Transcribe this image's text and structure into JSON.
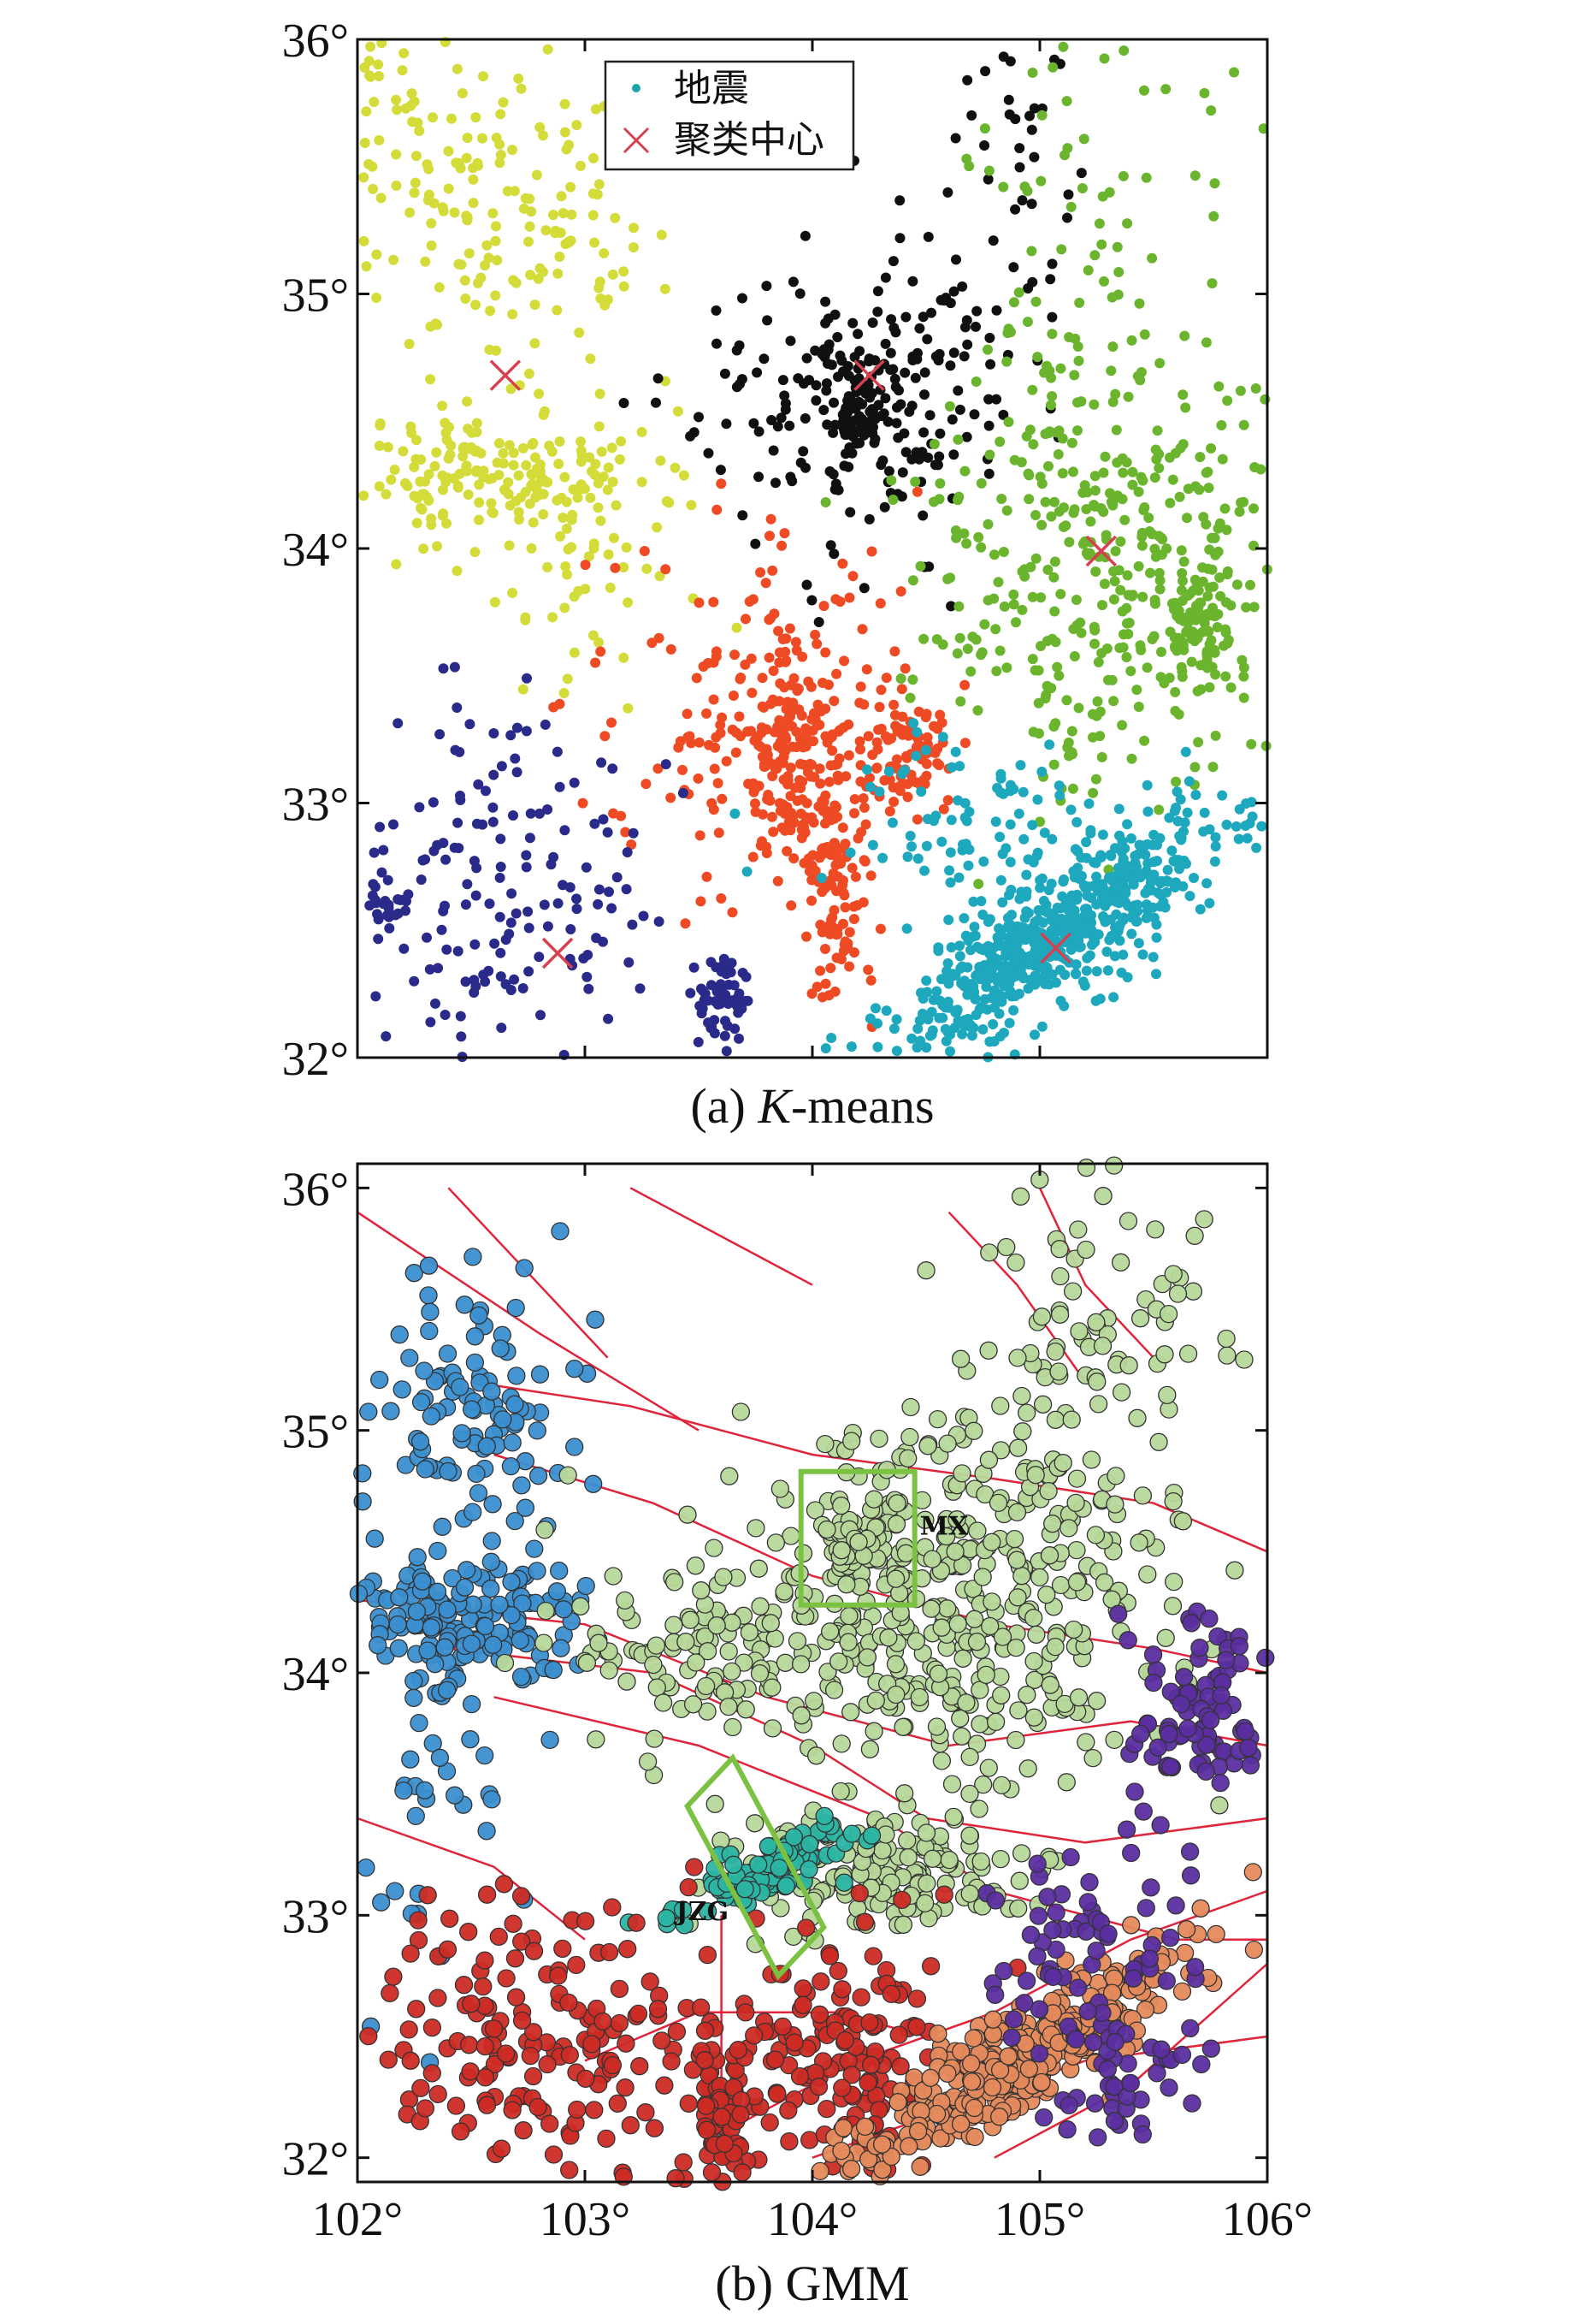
{
  "chart_data": [
    {
      "type": "scatter",
      "caption_prefix": "(a) ",
      "caption_italic": "K",
      "caption_suffix": "-means",
      "xlim": [
        102,
        106
      ],
      "ylim": [
        32,
        36
      ],
      "yticks": [
        {
          "value": 32,
          "label": "32°"
        },
        {
          "value": 33,
          "label": "33°"
        },
        {
          "value": 34,
          "label": "34°"
        },
        {
          "value": 35,
          "label": "35°"
        },
        {
          "value": 36,
          "label": "36°"
        }
      ],
      "xticks": [
        {
          "value": 103,
          "label": ""
        },
        {
          "value": 104,
          "label": ""
        },
        {
          "value": 105,
          "label": ""
        }
      ],
      "legend": {
        "position": "top-left",
        "entries": [
          {
            "label": "地震",
            "marker": "dot",
            "color": "#1fa3a8"
          },
          {
            "label": "聚类中心",
            "marker": "x",
            "color": "#d6404f"
          }
        ]
      },
      "series": [
        {
          "color": "#d4dc3a",
          "seed": 11,
          "clusters": [
            {
              "cx": 102.6,
              "cy": 34.3,
              "sx": 0.35,
              "sy": 0.12,
              "n": 170
            },
            {
              "cx": 102.7,
              "cy": 35.3,
              "sx": 0.3,
              "sy": 0.3,
              "n": 140
            },
            {
              "cx": 102.2,
              "cy": 35.6,
              "sx": 0.2,
              "sy": 0.3,
              "n": 60
            },
            {
              "cx": 102.9,
              "cy": 34.0,
              "sx": 0.35,
              "sy": 0.25,
              "n": 60
            }
          ]
        },
        {
          "color": "#101010",
          "seed": 23,
          "clusters": [
            {
              "cx": 104.2,
              "cy": 34.5,
              "sx": 0.05,
              "sy": 0.05,
              "n": 60
            },
            {
              "cx": 104.2,
              "cy": 34.6,
              "sx": 0.35,
              "sy": 0.3,
              "n": 230
            },
            {
              "cx": 104.9,
              "cy": 35.6,
              "sx": 0.12,
              "sy": 0.35,
              "n": 40
            }
          ]
        },
        {
          "color": "#6ab42e",
          "seed": 37,
          "clusters": [
            {
              "cx": 105.3,
              "cy": 34.0,
              "sx": 0.4,
              "sy": 0.45,
              "n": 420
            },
            {
              "cx": 105.7,
              "cy": 33.7,
              "sx": 0.08,
              "sy": 0.12,
              "n": 80
            },
            {
              "cx": 105.3,
              "cy": 35.3,
              "sx": 0.3,
              "sy": 0.4,
              "n": 60
            }
          ]
        },
        {
          "color": "#ee4a24",
          "seed": 41,
          "clusters": [
            {
              "cx": 103.9,
              "cy": 33.2,
              "sx": 0.1,
              "sy": 0.2,
              "n": 140
            },
            {
              "cx": 104.1,
              "cy": 32.7,
              "sx": 0.08,
              "sy": 0.25,
              "n": 120
            },
            {
              "cx": 104.4,
              "cy": 33.2,
              "sx": 0.12,
              "sy": 0.12,
              "n": 80
            },
            {
              "cx": 103.8,
              "cy": 33.3,
              "sx": 0.35,
              "sy": 0.4,
              "n": 180
            }
          ]
        },
        {
          "color": "#1ea8bd",
          "seed": 53,
          "clusters": [
            {
              "cx": 105.1,
              "cy": 32.5,
              "sx": 0.45,
              "sy": 0.12,
              "n": 650,
              "tilt": 0.55
            },
            {
              "cx": 104.7,
              "cy": 32.9,
              "sx": 0.3,
              "sy": 0.2,
              "n": 90
            }
          ]
        },
        {
          "color": "#2a2a8a",
          "seed": 67,
          "clusters": [
            {
              "cx": 102.6,
              "cy": 32.6,
              "sx": 0.3,
              "sy": 0.35,
              "n": 160
            },
            {
              "cx": 103.6,
              "cy": 32.2,
              "sx": 0.06,
              "sy": 0.12,
              "n": 60
            },
            {
              "cx": 102.1,
              "cy": 32.6,
              "sx": 0.06,
              "sy": 0.06,
              "n": 20
            }
          ]
        }
      ],
      "centers": [
        {
          "x": 102.65,
          "y": 34.68
        },
        {
          "x": 104.25,
          "y": 34.68
        },
        {
          "x": 105.27,
          "y": 33.99
        },
        {
          "x": 102.88,
          "y": 32.41
        },
        {
          "x": 105.07,
          "y": 32.43
        }
      ]
    },
    {
      "type": "scatter",
      "caption": "(b) GMM",
      "xlim": [
        102,
        106
      ],
      "ylim": [
        31.9,
        36.1
      ],
      "yticks": [
        {
          "value": 32,
          "label": "32°"
        },
        {
          "value": 33,
          "label": "33°"
        },
        {
          "value": 34,
          "label": "34°"
        },
        {
          "value": 35,
          "label": "35°"
        },
        {
          "value": 36,
          "label": "36°"
        }
      ],
      "xticks": [
        {
          "value": 102,
          "label": "102°"
        },
        {
          "value": 103,
          "label": "103°"
        },
        {
          "value": 104,
          "label": "104°"
        },
        {
          "value": 105,
          "label": "105°"
        },
        {
          "value": 106,
          "label": "106°"
        }
      ],
      "series": [
        {
          "color": "#3b8fd0",
          "seed": 71,
          "clusters": [
            {
              "cx": 102.5,
              "cy": 34.2,
              "sx": 0.3,
              "sy": 0.15,
              "n": 160
            },
            {
              "cx": 102.5,
              "cy": 35.1,
              "sx": 0.25,
              "sy": 0.3,
              "n": 110
            },
            {
              "cx": 102.3,
              "cy": 33.5,
              "sx": 0.2,
              "sy": 0.35,
              "n": 40
            }
          ]
        },
        {
          "color": "#b7d89a",
          "seed": 83,
          "clusters": [
            {
              "cx": 104.6,
              "cy": 34.3,
              "sx": 0.5,
              "sy": 0.4,
              "n": 420
            },
            {
              "cx": 104.3,
              "cy": 33.2,
              "sx": 0.35,
              "sy": 0.12,
              "n": 170
            },
            {
              "cx": 104.2,
              "cy": 34.55,
              "sx": 0.06,
              "sy": 0.06,
              "n": 40
            },
            {
              "cx": 105.2,
              "cy": 35.4,
              "sx": 0.35,
              "sy": 0.35,
              "n": 90
            },
            {
              "cx": 103.6,
              "cy": 34.1,
              "sx": 0.35,
              "sy": 0.15,
              "n": 110
            }
          ]
        },
        {
          "color": "#2bb5a3",
          "seed": 97,
          "clusters": [
            {
              "cx": 103.8,
              "cy": 33.2,
              "sx": 0.06,
              "sy": 0.22,
              "n": 120,
              "tilt": -1.2
            }
          ]
        },
        {
          "color": "#cc2b24",
          "seed": 101,
          "clusters": [
            {
              "cx": 102.8,
              "cy": 32.5,
              "sx": 0.4,
              "sy": 0.3,
              "n": 180
            },
            {
              "cx": 104.1,
              "cy": 32.4,
              "sx": 0.25,
              "sy": 0.3,
              "n": 160
            },
            {
              "cx": 103.6,
              "cy": 32.2,
              "sx": 0.08,
              "sy": 0.15,
              "n": 60
            }
          ]
        },
        {
          "color": "#e58a5c",
          "seed": 113,
          "clusters": [
            {
              "cx": 104.9,
              "cy": 32.4,
              "sx": 0.45,
              "sy": 0.1,
              "n": 340,
              "tilt": 0.55
            }
          ]
        },
        {
          "color": "#5b2ea0",
          "seed": 127,
          "clusters": [
            {
              "cx": 105.7,
              "cy": 33.8,
              "sx": 0.15,
              "sy": 0.2,
              "n": 90
            },
            {
              "cx": 105.2,
              "cy": 32.8,
              "sx": 0.25,
              "sy": 0.25,
              "n": 70
            },
            {
              "cx": 105.4,
              "cy": 32.3,
              "sx": 0.2,
              "sy": 0.12,
              "n": 40
            }
          ]
        }
      ],
      "faults": [
        [
          [
            102.0,
            35.9
          ],
          [
            102.8,
            35.4
          ],
          [
            103.5,
            35.0
          ]
        ],
        [
          [
            102.4,
            36.0
          ],
          [
            102.8,
            35.6
          ],
          [
            103.1,
            35.3
          ]
        ],
        [
          [
            102.5,
            35.2
          ],
          [
            103.2,
            35.1
          ],
          [
            104.0,
            34.9
          ],
          [
            104.8,
            34.8
          ],
          [
            105.5,
            34.7
          ],
          [
            106.0,
            34.5
          ]
        ],
        [
          [
            102.6,
            34.9
          ],
          [
            103.3,
            34.7
          ],
          [
            104.0,
            34.4
          ],
          [
            104.8,
            34.2
          ],
          [
            105.5,
            34.1
          ],
          [
            106.0,
            34.0
          ]
        ],
        [
          [
            102.0,
            34.3
          ],
          [
            103.0,
            34.2
          ],
          [
            103.8,
            33.9
          ],
          [
            104.6,
            33.7
          ],
          [
            105.4,
            33.8
          ],
          [
            106.0,
            33.7
          ]
        ],
        [
          [
            102.4,
            34.1
          ],
          [
            103.3,
            34.0
          ],
          [
            104.0,
            33.7
          ],
          [
            104.5,
            33.4
          ],
          [
            105.2,
            33.3
          ],
          [
            106.0,
            33.4
          ]
        ],
        [
          [
            102.6,
            33.9
          ],
          [
            103.5,
            33.7
          ],
          [
            104.3,
            33.4
          ],
          [
            104.8,
            33.1
          ],
          [
            105.6,
            32.9
          ],
          [
            106.0,
            32.9
          ]
        ],
        [
          [
            103.6,
            32.1
          ],
          [
            104.2,
            32.4
          ],
          [
            104.8,
            32.6
          ],
          [
            105.4,
            32.9
          ],
          [
            106.0,
            33.1
          ]
        ],
        [
          [
            104.0,
            32.0
          ],
          [
            104.6,
            32.2
          ],
          [
            105.2,
            32.4
          ],
          [
            106.0,
            32.5
          ]
        ],
        [
          [
            104.8,
            32.0
          ],
          [
            105.4,
            32.3
          ],
          [
            106.0,
            32.8
          ]
        ],
        [
          [
            103.0,
            32.4
          ],
          [
            103.5,
            32.6
          ],
          [
            104.1,
            32.6
          ],
          [
            104.5,
            32.5
          ]
        ],
        [
          [
            102.0,
            33.4
          ],
          [
            102.6,
            33.2
          ],
          [
            103.0,
            32.9
          ]
        ],
        [
          [
            104.6,
            35.9
          ],
          [
            104.9,
            35.6
          ],
          [
            105.2,
            35.2
          ]
        ],
        [
          [
            105.0,
            36.0
          ],
          [
            105.2,
            35.6
          ],
          [
            105.5,
            35.3
          ]
        ],
        [
          [
            103.2,
            36.0
          ],
          [
            103.6,
            35.8
          ],
          [
            104.0,
            35.6
          ]
        ],
        [
          [
            103.6,
            33.0
          ],
          [
            103.6,
            32.5
          ],
          [
            103.6,
            32.0
          ]
        ]
      ],
      "boxes": [
        {
          "label": "MX",
          "corners": [
            [
              103.95,
              34.83
            ],
            [
              104.45,
              34.83
            ],
            [
              104.45,
              34.28
            ],
            [
              103.95,
              34.28
            ]
          ]
        },
        {
          "label": "JZG",
          "corners": [
            [
              103.45,
              33.45
            ],
            [
              103.65,
              33.65
            ],
            [
              104.05,
              32.95
            ],
            [
              103.85,
              32.75
            ]
          ]
        }
      ]
    }
  ]
}
